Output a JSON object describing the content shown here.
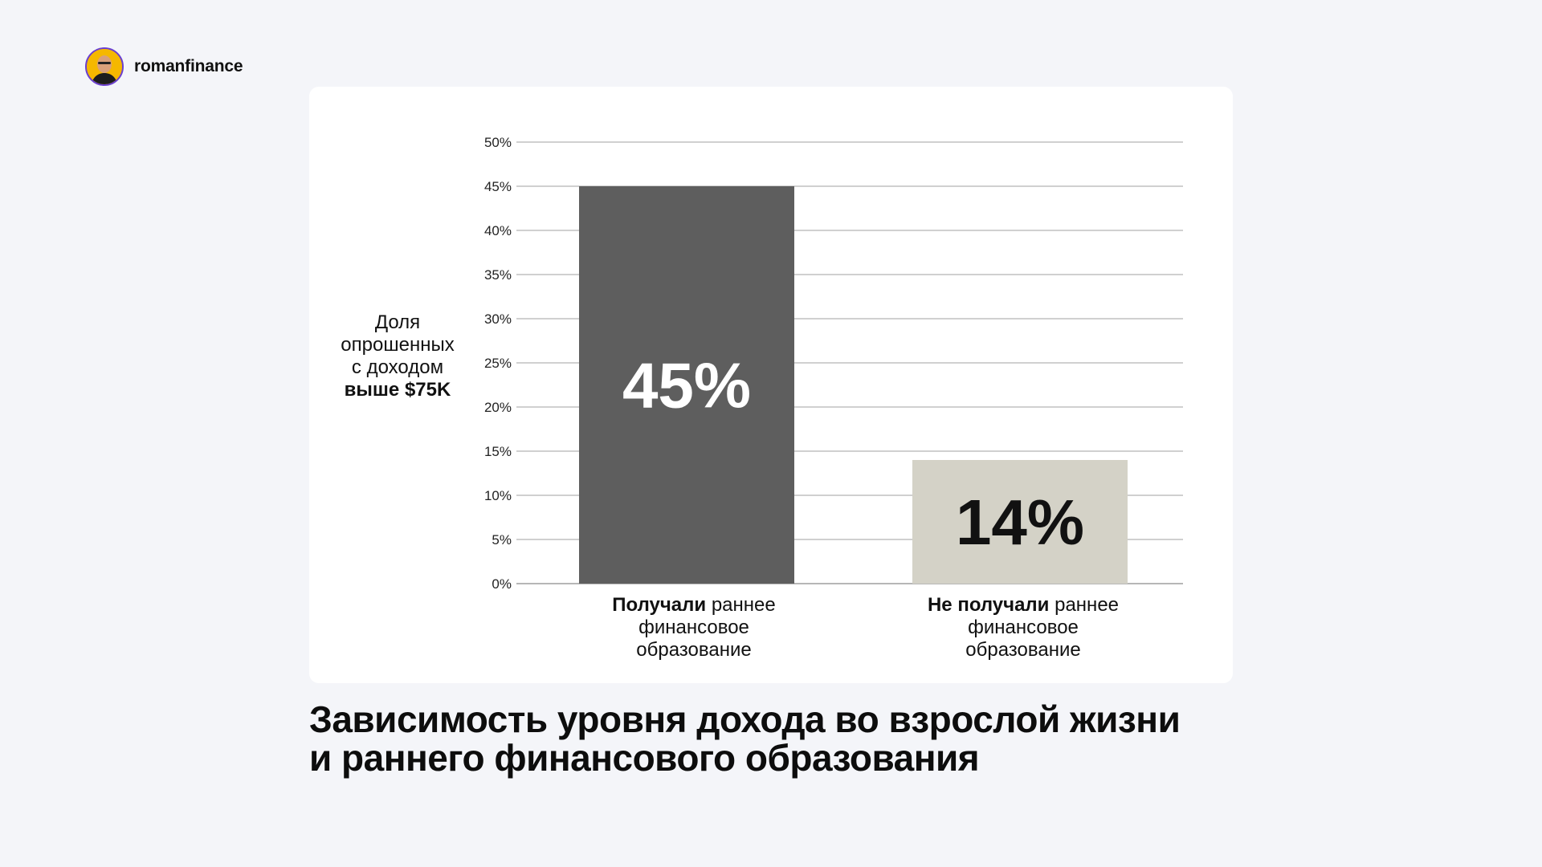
{
  "brand": {
    "name": "romanfinance"
  },
  "title": {
    "line1": "Зависимость уровня дохода во взрослой жизни",
    "line2": "и раннего финансового образования"
  },
  "chart_data": {
    "type": "bar",
    "categories": [
      {
        "bold": "Получали",
        "rest": "раннее",
        "line2": "финансовое",
        "line3": "образование"
      },
      {
        "bold": "Не получали",
        "rest": "раннее",
        "line2": "финансовое",
        "line3": "образование"
      }
    ],
    "values": [
      45,
      14
    ],
    "value_labels": [
      "45%",
      "14%"
    ],
    "bar_colors": [
      "#5e5e5e",
      "#d4d2c7"
    ],
    "value_label_colors": [
      "#ffffff",
      "#111111"
    ],
    "ylabel": {
      "line1": "Доля",
      "line2": "опрошенных",
      "line3": "с доходом",
      "line4_bold": "выше $75K"
    },
    "yticks": [
      "0%",
      "5%",
      "10%",
      "15%",
      "20%",
      "25%",
      "30%",
      "35%",
      "40%",
      "45%",
      "50%"
    ],
    "ylim": [
      0,
      50
    ],
    "grid": true,
    "legend": "none"
  }
}
